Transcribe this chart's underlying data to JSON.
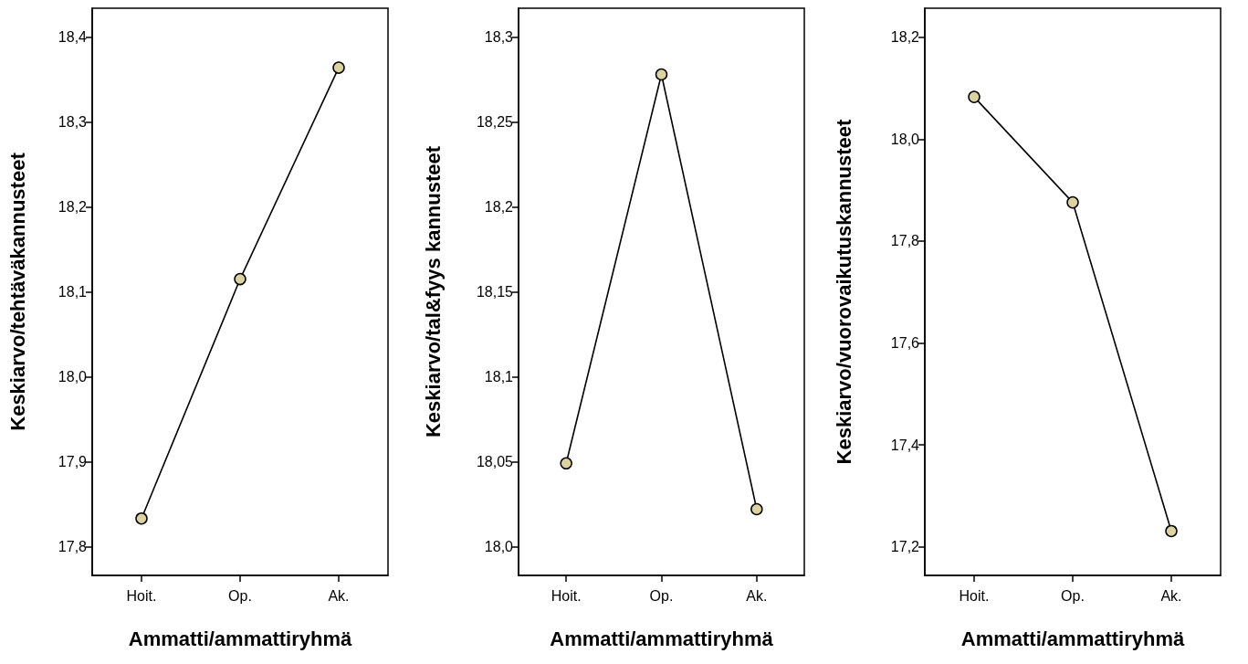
{
  "chart_data": [
    {
      "type": "line",
      "xlabel": "Ammatti/ammattiryhmä",
      "ylabel": "Keskiarvo/tehtäväkannusteet",
      "categories": [
        "Hoit.",
        "Op.",
        "Ak."
      ],
      "series": [
        {
          "color": "#ddd3a0",
          "values": [
            17.833,
            18.115,
            18.364
          ]
        }
      ],
      "ylim": [
        17.766,
        18.434
      ],
      "yticks": [
        {
          "value": 17.8,
          "label": "17,8"
        },
        {
          "value": 17.9,
          "label": "17,9"
        },
        {
          "value": 18.0,
          "label": "18,0"
        },
        {
          "value": 18.1,
          "label": "18,1"
        },
        {
          "value": 18.2,
          "label": "18,2"
        },
        {
          "value": 18.3,
          "label": "18,3"
        },
        {
          "value": 18.4,
          "label": "18,4"
        }
      ],
      "grid": false,
      "marker": "circle",
      "line_style": "solid"
    },
    {
      "type": "line",
      "xlabel": "Ammatti/ammattiryhmä",
      "ylabel": "Keskiarvo/tal&fyys kannusteet",
      "categories": [
        "Hoit.",
        "Op.",
        "Ak."
      ],
      "series": [
        {
          "color": "#ddd3a0",
          "values": [
            18.049,
            18.278,
            18.022
          ]
        }
      ],
      "ylim": [
        17.983,
        18.317
      ],
      "yticks": [
        {
          "value": 18.0,
          "label": "18,0"
        },
        {
          "value": 18.05,
          "label": "18,05"
        },
        {
          "value": 18.1,
          "label": "18,1"
        },
        {
          "value": 18.15,
          "label": "18,15"
        },
        {
          "value": 18.2,
          "label": "18,2"
        },
        {
          "value": 18.25,
          "label": "18,25"
        },
        {
          "value": 18.3,
          "label": "18,3"
        }
      ],
      "grid": false,
      "marker": "circle",
      "line_style": "solid"
    },
    {
      "type": "line",
      "xlabel": "Ammatti/ammattiryhmä",
      "ylabel": "Keskiarvo/vuorovaikutuskannusteet",
      "categories": [
        "Hoit.",
        "Op.",
        "Ak."
      ],
      "series": [
        {
          "color": "#ddd3a0",
          "values": [
            18.083,
            17.876,
            17.231
          ]
        }
      ],
      "ylim": [
        17.144,
        18.257
      ],
      "yticks": [
        {
          "value": 17.2,
          "label": "17,2"
        },
        {
          "value": 17.4,
          "label": "17,4"
        },
        {
          "value": 17.6,
          "label": "17,6"
        },
        {
          "value": 17.8,
          "label": "17,8"
        },
        {
          "value": 18.0,
          "label": "18,0"
        },
        {
          "value": 18.2,
          "label": "18,2"
        }
      ],
      "grid": false,
      "marker": "circle",
      "line_style": "solid"
    }
  ]
}
